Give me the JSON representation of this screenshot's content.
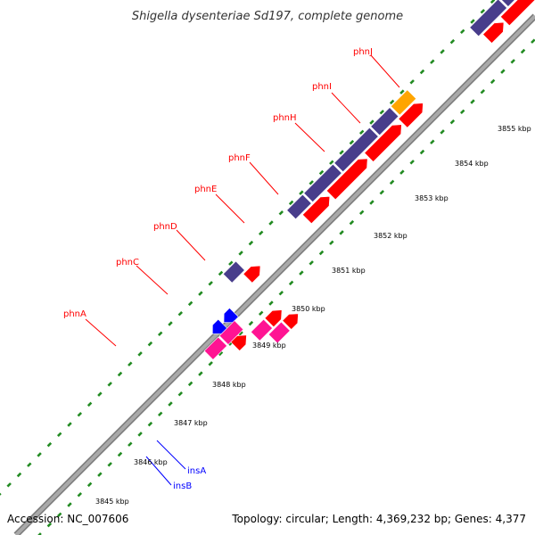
{
  "title": "Shigella dysenteriae Sd197, complete genome",
  "footer": {
    "accession": "Accession: NC_007606",
    "summary": "Topology: circular; Length: 4,369,232 bp; Genes: 4,377"
  },
  "colors": {
    "backbone": "#a9a9a9",
    "backbone_edge": "#7a7a7a",
    "gene_forward": "#483d8b",
    "gene_reverse": "#ff0000",
    "gene_hypothetical": "#ffa500",
    "gene_mobile": "#0000ff",
    "gene_mobile_alt": "#ff1493",
    "tick_dots": "#228b22",
    "label_red": "#ff0000",
    "label_blue": "#0000ff"
  },
  "scale_labels": [
    "3845 kbp",
    "3846 kbp",
    "3847 kbp",
    "3848 kbp",
    "3849 kbp",
    "3850 kbp",
    "3851 kbp",
    "3852 kbp",
    "3853 kbp",
    "3854 kbp",
    "3855 kbp"
  ],
  "gene_labels": [
    {
      "name": "phnA",
      "color": "red"
    },
    {
      "name": "phnC",
      "color": "red"
    },
    {
      "name": "phnD",
      "color": "red"
    },
    {
      "name": "phnE",
      "color": "red"
    },
    {
      "name": "phnF",
      "color": "red"
    },
    {
      "name": "phnH",
      "color": "red"
    },
    {
      "name": "phnI",
      "color": "red"
    },
    {
      "name": "phnJ",
      "color": "red"
    },
    {
      "name": "insA",
      "color": "blue"
    },
    {
      "name": "insB",
      "color": "blue"
    }
  ]
}
